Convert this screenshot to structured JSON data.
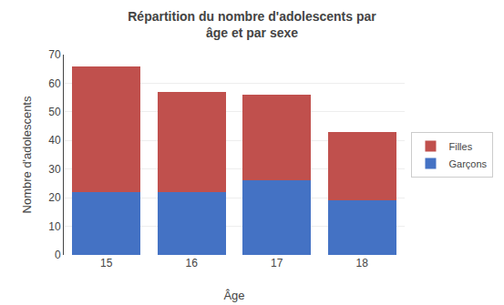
{
  "chart_data": {
    "type": "bar",
    "title": "Répartition du nombre d'adolescents par\nâge et par sexe",
    "xlabel": "Âge",
    "ylabel": "Nombre d'adolescents",
    "categories": [
      "15",
      "16",
      "17",
      "18"
    ],
    "series": [
      {
        "name": "Garçons",
        "color": "#4472C4",
        "values": [
          22,
          22,
          26,
          19
        ]
      },
      {
        "name": "Filles",
        "color": "#C0504D",
        "values": [
          44,
          35,
          30,
          24
        ]
      }
    ],
    "stacked": true,
    "ylim": [
      0,
      70
    ],
    "yticks": [
      0,
      10,
      20,
      30,
      40,
      50,
      60,
      70
    ],
    "grid": true,
    "legend": "right"
  }
}
